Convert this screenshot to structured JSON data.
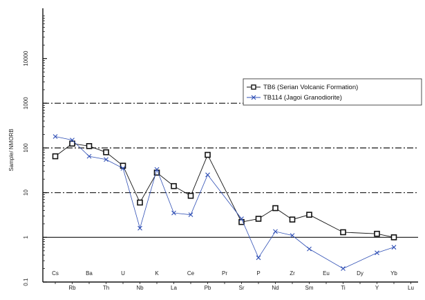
{
  "chart_data": {
    "type": "line",
    "ylabel": "Sample/ NMORB",
    "yscale": "log",
    "ylim": [
      0.1,
      100000
    ],
    "y_tick_labels": [
      "0.1",
      "1",
      "10",
      "100",
      "1000",
      "10000"
    ],
    "categories": [
      "Cs",
      "Rb",
      "Ba",
      "Th",
      "U",
      "Nb",
      "K",
      "La",
      "Ce",
      "Pb",
      "Pr",
      "Sr",
      "P",
      "Nd",
      "Zr",
      "Sm",
      "Eu",
      "Ti",
      "Dy",
      "Y",
      "Yb",
      "Lu"
    ],
    "series": [
      {
        "name": "TB6 (Serian Volcanic Formation)",
        "color": "#111111",
        "marker": "square",
        "values": [
          65,
          125,
          110,
          80,
          40,
          6,
          28,
          14,
          8.5,
          70,
          null,
          2.2,
          2.6,
          4.5,
          2.5,
          3.2,
          null,
          1.3,
          null,
          1.2,
          1.0,
          null
        ]
      },
      {
        "name": "TB114 (Jagoi Granodiorite)",
        "color": "#2f4fb5",
        "marker": "x",
        "values": [
          180,
          150,
          65,
          55,
          35,
          1.6,
          33,
          3.5,
          3.2,
          25,
          null,
          2.6,
          0.35,
          1.35,
          1.1,
          0.55,
          null,
          0.2,
          null,
          0.45,
          0.6,
          null
        ]
      }
    ],
    "grid": "dash-dot at 10, 100, 1000; solid at 1",
    "legend_position": "top-right"
  }
}
